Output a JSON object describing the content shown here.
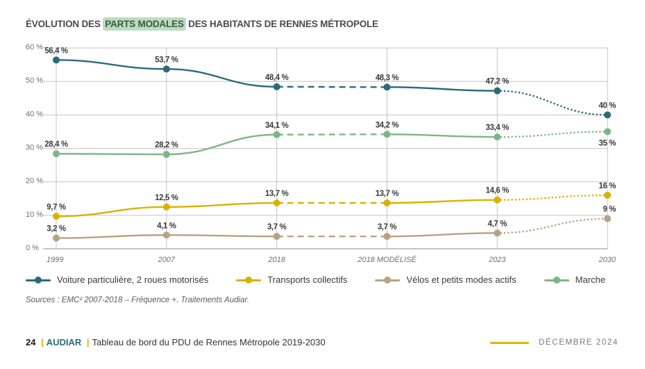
{
  "title": {
    "before": "ÉVOLUTION DES ",
    "highlight": "PARTS MODALES",
    "after": " DES HABITANTS DE RENNES MÉTROPOLE"
  },
  "chart_data": {
    "type": "line",
    "title": "ÉVOLUTION DES PARTS MODALES DES HABITANTS DE RENNES MÉTROPOLE",
    "xlabel": "",
    "ylabel": "",
    "categories": [
      "1999",
      "2007",
      "2018",
      "2018 MODÉLISÉ",
      "2023",
      "2030"
    ],
    "ylim": [
      0,
      60
    ],
    "yticks": [
      0,
      10,
      20,
      30,
      40,
      50,
      60
    ],
    "ytick_labels": [
      "0 %",
      "10 %",
      "20 %",
      "30 %",
      "40 %",
      "50 %",
      "60 %"
    ],
    "grid": true,
    "legend_position": "bottom",
    "segment_styles": [
      "solid",
      "solid",
      "dashed",
      "solid",
      "dotted"
    ],
    "series": [
      {
        "name": "Voiture particulière, 2 roues motorisés",
        "color": "#2b6b7a",
        "values": [
          56.4,
          53.7,
          48.4,
          48.3,
          47.2,
          40
        ],
        "labels": [
          "56,4 %",
          "53,7 %",
          "48,4 %",
          "48,3 %",
          "47,2 %",
          "40 %"
        ],
        "label_pos": [
          "above",
          "above",
          "above",
          "above",
          "above",
          "above"
        ]
      },
      {
        "name": "Transports collectifs",
        "color": "#d9b200",
        "values": [
          9.7,
          12.5,
          13.7,
          13.7,
          14.6,
          16
        ],
        "labels": [
          "9,7 %",
          "12,5 %",
          "13,7 %",
          "13,7 %",
          "14,6 %",
          "16 %"
        ],
        "label_pos": [
          "above",
          "above",
          "above",
          "above",
          "above",
          "above"
        ]
      },
      {
        "name": "Vélos et petits modes actifs",
        "color": "#b9a183",
        "values": [
          3.2,
          4.1,
          3.7,
          3.7,
          4.7,
          9
        ],
        "labels": [
          "3,2 %",
          "4,1 %",
          "3,7 %",
          "3,7 %",
          "4,7 %",
          "9 %"
        ],
        "label_pos": [
          "above",
          "above",
          "above",
          "above",
          "above",
          "above"
        ]
      },
      {
        "name": "Marche",
        "color": "#7db586",
        "values": [
          28.4,
          28.2,
          34.1,
          34.2,
          33.4,
          35
        ],
        "labels": [
          "28,4 %",
          "28,2 %",
          "34,1 %",
          "34,2 %",
          "33,4 %",
          "35 %"
        ],
        "label_pos": [
          "above",
          "above",
          "above",
          "above",
          "above",
          "below"
        ]
      }
    ]
  },
  "sources": "Sources : EMC² 2007-2018 – Fréquence +. Traitements Audiar.",
  "footer": {
    "page_number": "24",
    "brand": "AUDIAR",
    "separator": "|",
    "document_title": "Tableau de bord du PDU de Rennes Métropole 2019-2030",
    "date": "DÉCEMBRE 2024",
    "accent_color": "#e0b400"
  }
}
